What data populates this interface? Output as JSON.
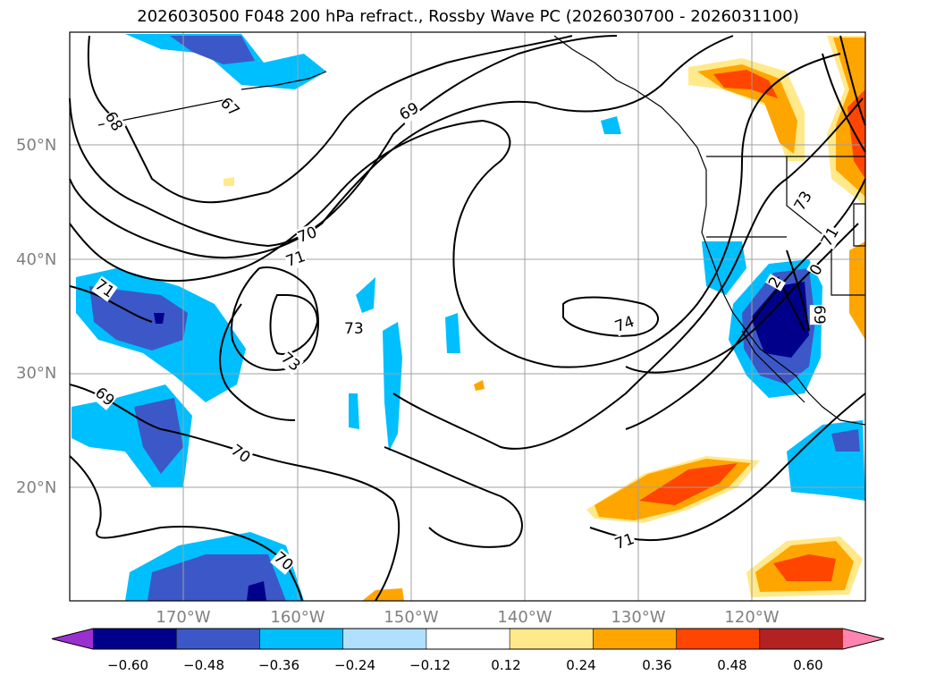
{
  "title": "2026030500 F048 200 hPa refract., Rossby Wave PC (2026030700 - 2026031100)",
  "lat_labels": [
    "50°N",
    "40°N",
    "30°N",
    "20°N"
  ],
  "lon_labels": [
    "170°W",
    "160°W",
    "150°W",
    "140°W",
    "130°W",
    "120°W"
  ],
  "contour_labels": [
    "68",
    "67",
    "69",
    "70",
    "71",
    "71",
    "73",
    "73",
    "74",
    "69",
    "70",
    "71",
    "73",
    "71",
    "0",
    "2",
    "69"
  ],
  "colorbar": {
    "colors": [
      "#9b30d0",
      "#00008b",
      "#3c58c8",
      "#00bfff",
      "#b0e0ff",
      "#ffffff",
      "#ffe98a",
      "#ffa500",
      "#ff4500",
      "#b22222",
      "#ff85b0"
    ],
    "tick_labels": [
      "−0.60",
      "−0.48",
      "−0.36",
      "−0.24",
      "−0.12",
      "0.12",
      "0.24",
      "0.36",
      "0.48",
      "0.60"
    ]
  }
}
